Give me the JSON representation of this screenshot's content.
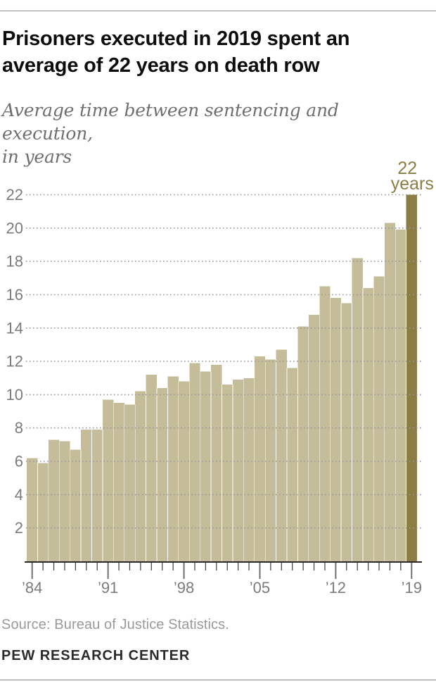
{
  "header": {
    "title_line1": "Prisoners executed in 2019 spent an",
    "title_line2": "average of 22 years on death row",
    "subtitle_line1": "Average time between sentencing and execution,",
    "subtitle_line2": "in years"
  },
  "footer": {
    "source": "Source: Bureau of Justice Statistics.",
    "brand": "PEW RESEARCH CENTER"
  },
  "chart_data": {
    "type": "bar",
    "title": "Average time between sentencing and execution, in years",
    "x": [
      1984,
      1985,
      1986,
      1987,
      1988,
      1989,
      1990,
      1991,
      1992,
      1993,
      1994,
      1995,
      1996,
      1997,
      1998,
      1999,
      2000,
      2001,
      2002,
      2003,
      2004,
      2005,
      2006,
      2007,
      2008,
      2009,
      2010,
      2011,
      2012,
      2013,
      2014,
      2015,
      2016,
      2017,
      2018,
      2019
    ],
    "values": [
      6.2,
      5.9,
      7.3,
      7.2,
      6.7,
      7.9,
      7.9,
      9.7,
      9.5,
      9.4,
      10.2,
      11.2,
      10.4,
      11.1,
      10.8,
      11.9,
      11.4,
      11.8,
      10.6,
      10.9,
      11.0,
      12.3,
      12.1,
      12.7,
      11.6,
      14.1,
      14.8,
      16.5,
      15.8,
      15.5,
      18.2,
      16.4,
      17.1,
      20.3,
      19.9,
      22
    ],
    "highlight_x": 2019,
    "annotation": {
      "line1": "22",
      "line2": "years",
      "at_x": 2019
    },
    "y_ticks": [
      2,
      4,
      6,
      8,
      10,
      12,
      14,
      16,
      18,
      20,
      22
    ],
    "x_tick_labels": [
      "’84",
      "’91",
      "’98",
      "’05",
      "’12",
      "’19"
    ],
    "x_tick_positions": [
      1984,
      1991,
      1998,
      2005,
      2012,
      2019
    ],
    "ylim": [
      0,
      22.8
    ],
    "grid": "dotted-horizontal",
    "legend": "none",
    "colors": {
      "bar": "#c5bc99",
      "highlight": "#8b7d44",
      "grid": "#999999",
      "axis_line": "#2a2a2a",
      "tick_minor": "#3a3a3a",
      "tick_major": "#6f6f6f",
      "axis_label": "#7b7b7b",
      "annotation_text": "#8b7d44"
    }
  }
}
